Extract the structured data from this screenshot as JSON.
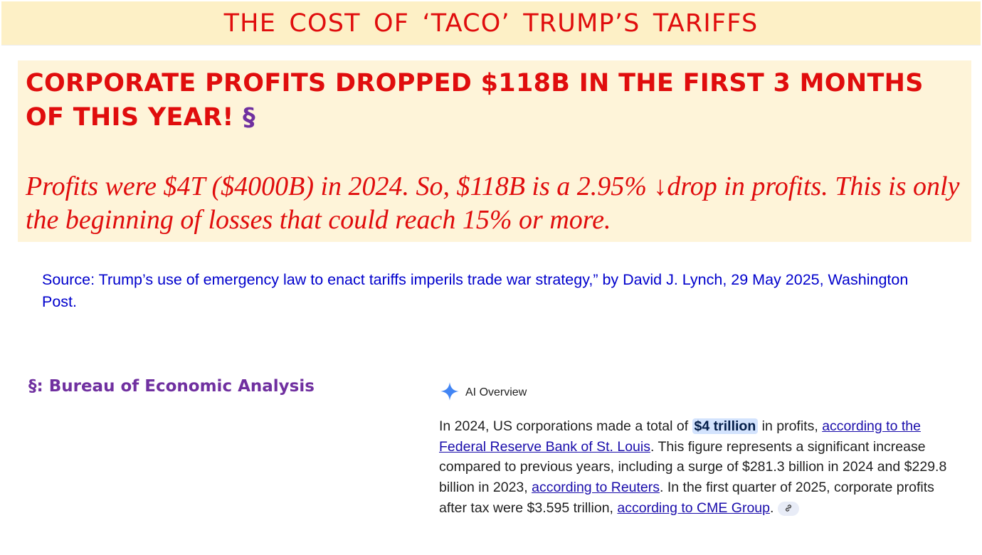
{
  "title": "THE COST OF ‘TACO’ TRUMP’S TARIFFS",
  "headline": {
    "text": "CORPORATE PROFITS DROPPED $118B IN THE FIRST 3 MONTHS OF THIS YEAR!",
    "marker": "§"
  },
  "italic_note": "Profits were $4T ($4000B) in 2024. So, $118B is a 2.95% ↓drop in profits. This is only the beginning of losses that could reach 15% or more.",
  "source": "Source:  Trump’s use of emergency law to enact tariffs imperils trade war strategy,” by David J. Lynch, 29 May 2025, Washington Post.",
  "footnote": "§: Bureau of Economic Analysis",
  "ai_overview": {
    "icon": "sparkle-icon",
    "label": "AI Overview",
    "p1": "In 2024, US corporations made a total of ",
    "highlight": "$4 trillion",
    "p2": " in profits, ",
    "link1": "according to the Federal Reserve Bank of St. Louis",
    "p3": ". This figure represents a significant increase compared to previous years, including a surge of $281.3 billion in 2024 and $229.8 billion in 2023, ",
    "link2": "according to Reuters",
    "p4": ". In the first quarter of 2025, corporate profits after tax were $3.595 trillion, ",
    "link3": "according to CME Group",
    "p5": ".",
    "chip_icon": "link-icon"
  },
  "colors": {
    "title_bg": "#fdf0c6",
    "box_bg": "#fef4d9",
    "red": "#e00d0d",
    "purple": "#7030a0",
    "source_blue": "#0000cc",
    "link_blue": "#1a0dab",
    "sparkle": "#4285f4"
  }
}
